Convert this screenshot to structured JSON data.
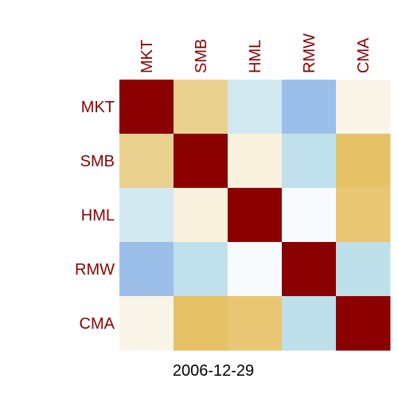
{
  "chart_data": {
    "type": "heatmap",
    "title": "",
    "xlabel": "2006-12-29",
    "ylabel": "",
    "x_categories": [
      "MKT",
      "SMB",
      "HML",
      "RMW",
      "CMA"
    ],
    "y_categories": [
      "MKT",
      "SMB",
      "HML",
      "RMW",
      "CMA"
    ],
    "label_color": "#8b0000",
    "cell_colors": [
      [
        "#8b0000",
        "#ebd18f",
        "#d2e9f1",
        "#9bbfe8",
        "#faf5e8"
      ],
      [
        "#ebd18f",
        "#8b0000",
        "#f9f0dd",
        "#c0e1ec",
        "#e6c165"
      ],
      [
        "#d2e9f1",
        "#f9f0dd",
        "#8b0000",
        "#f8fbfe",
        "#e8c673"
      ],
      [
        "#9bbfe8",
        "#c0e1ec",
        "#f8fbfe",
        "#8b0000",
        "#bde0ea"
      ],
      [
        "#faf5e8",
        "#e6c165",
        "#e8c673",
        "#bde0ea",
        "#8b0000"
      ]
    ]
  }
}
